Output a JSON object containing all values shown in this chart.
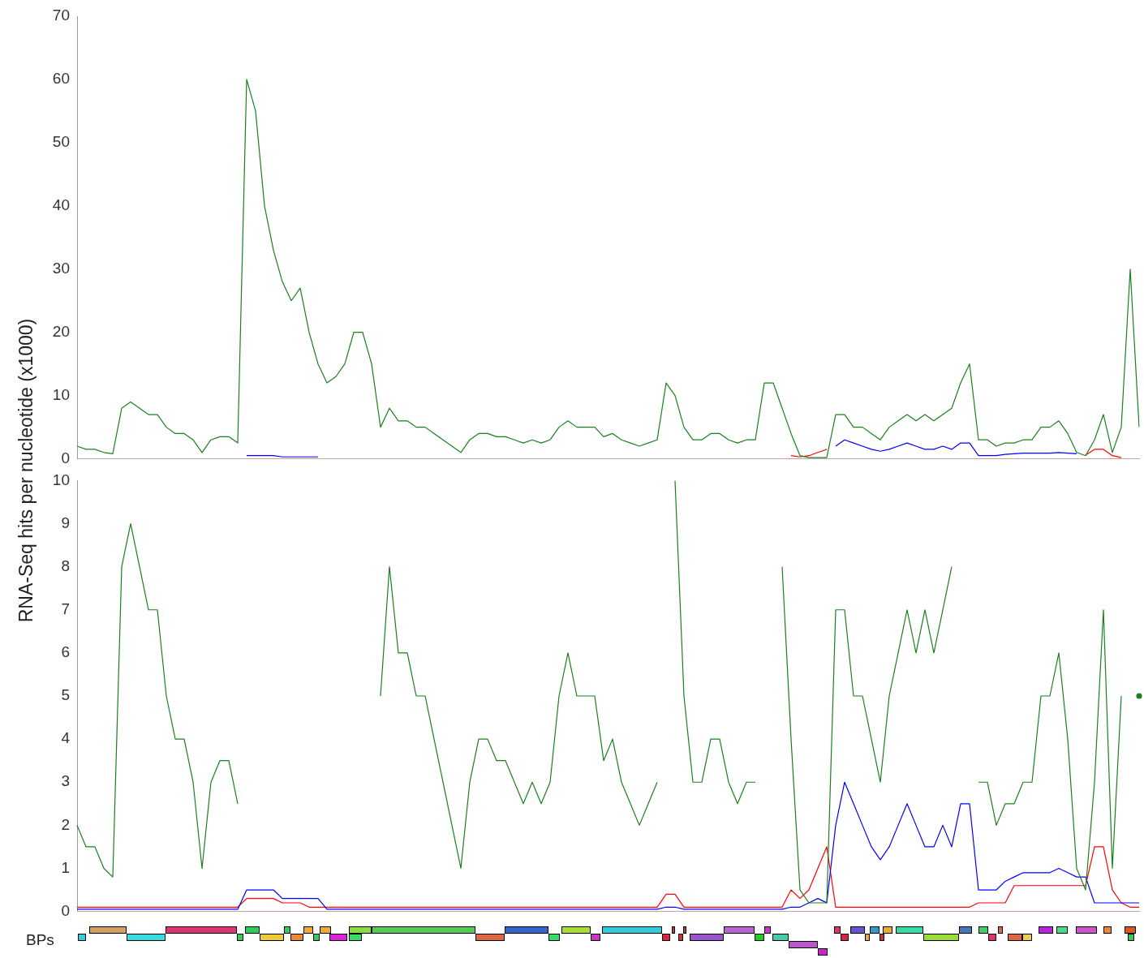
{
  "chart_data": [
    {
      "type": "line",
      "ylabel": "RNA-Seq hits per nucleotide (x1000)",
      "categories": [
        null,
        null,
        null,
        null,
        null,
        null,
        null,
        null,
        null,
        null,
        null,
        null,
        null,
        null,
        null,
        null,
        null,
        null,
        null,
        null,
        null,
        null,
        null,
        null,
        null,
        null,
        null,
        null,
        null,
        null,
        null,
        null,
        null,
        null,
        null,
        null,
        null,
        null,
        null,
        null,
        null,
        null,
        null,
        null,
        null,
        null,
        null,
        null,
        null,
        null,
        null,
        null,
        null,
        null,
        null,
        null,
        null,
        null,
        null,
        null,
        null,
        null,
        null,
        null,
        null,
        null,
        null,
        null,
        null,
        null,
        null,
        null,
        null,
        null,
        null,
        null,
        null,
        null,
        null,
        null,
        null,
        null,
        null,
        null,
        null,
        null,
        null,
        null,
        null,
        null,
        null,
        null,
        null,
        null,
        null,
        null,
        null,
        null,
        null,
        null,
        null,
        null,
        null,
        null,
        null,
        null,
        null,
        null,
        null,
        null,
        null,
        null,
        null,
        null,
        null,
        null,
        null,
        null,
        null,
        null
      ],
      "ylim": [
        0,
        70
      ],
      "yticks": [
        0,
        10,
        20,
        30,
        40,
        50,
        60,
        70
      ],
      "tick_labels": "y",
      "grid": false,
      "legend": false,
      "marker": "none",
      "line_style": "solid",
      "series": [
        {
          "color": "#1b801b",
          "values": [
            2,
            1.5,
            1.5,
            1,
            0.8,
            8,
            9,
            8,
            7,
            7,
            5,
            4,
            4,
            3,
            1,
            3,
            3.5,
            3.5,
            2.5,
            60,
            55,
            40,
            33,
            28,
            25,
            27,
            20,
            15,
            12,
            13,
            15,
            20,
            20,
            15,
            5,
            8,
            6,
            6,
            5,
            5,
            4,
            3,
            2,
            1,
            3,
            4,
            4,
            3.5,
            3.5,
            3,
            2.5,
            3,
            2.5,
            3,
            5,
            6,
            5,
            5,
            5,
            3.5,
            4,
            3,
            2.5,
            2,
            2.5,
            3,
            12,
            10,
            5,
            3,
            3,
            4,
            4,
            3,
            2.5,
            3,
            3,
            12,
            12,
            8,
            4,
            0.5,
            0.2,
            0.2,
            0.2,
            7,
            7,
            5,
            5,
            4,
            3,
            5,
            6,
            7,
            6,
            7,
            6,
            7,
            8,
            12,
            15,
            3,
            3,
            2,
            2.5,
            2.5,
            3,
            3,
            5,
            5,
            6,
            4,
            1,
            0.5,
            3,
            7,
            1,
            5,
            30,
            5
          ]
        },
        {
          "color": "#0000ff",
          "values": [
            null,
            null,
            null,
            null,
            null,
            null,
            null,
            null,
            null,
            null,
            null,
            null,
            null,
            null,
            null,
            null,
            null,
            null,
            null,
            0.5,
            0.5,
            0.5,
            0.5,
            0.3,
            0.3,
            0.3,
            0.3,
            0.3,
            null,
            null,
            null,
            null,
            null,
            null,
            null,
            null,
            null,
            null,
            null,
            null,
            null,
            null,
            null,
            null,
            null,
            null,
            null,
            null,
            null,
            null,
            null,
            null,
            null,
            null,
            null,
            null,
            null,
            null,
            null,
            null,
            null,
            null,
            null,
            null,
            null,
            null,
            null,
            null,
            null,
            null,
            null,
            null,
            null,
            null,
            null,
            null,
            null,
            null,
            null,
            null,
            null,
            null,
            null,
            null,
            null,
            2,
            3,
            2.5,
            2,
            1.5,
            1.2,
            1.5,
            2,
            2.5,
            2,
            1.5,
            1.5,
            2,
            1.5,
            2.5,
            2.5,
            0.5,
            0.5,
            0.5,
            0.7,
            0.8,
            0.9,
            0.9,
            0.9,
            0.9,
            1,
            0.9,
            0.8,
            null,
            null,
            null,
            null,
            null,
            null,
            null
          ]
        },
        {
          "color": "#ff0000",
          "values": [
            null,
            null,
            null,
            null,
            null,
            null,
            null,
            null,
            null,
            null,
            null,
            null,
            null,
            null,
            null,
            null,
            null,
            null,
            null,
            null,
            null,
            null,
            null,
            null,
            null,
            null,
            null,
            null,
            null,
            null,
            null,
            null,
            null,
            null,
            null,
            null,
            null,
            null,
            null,
            null,
            null,
            null,
            null,
            null,
            null,
            null,
            null,
            null,
            null,
            null,
            null,
            null,
            null,
            null,
            null,
            null,
            null,
            null,
            null,
            null,
            null,
            null,
            null,
            null,
            null,
            null,
            null,
            null,
            null,
            null,
            null,
            null,
            null,
            null,
            null,
            null,
            null,
            null,
            null,
            null,
            0.5,
            0.3,
            0.5,
            1,
            1.5,
            null,
            null,
            null,
            null,
            null,
            null,
            null,
            null,
            null,
            null,
            null,
            null,
            null,
            null,
            null,
            null,
            null,
            null,
            null,
            null,
            null,
            null,
            null,
            null,
            null,
            null,
            null,
            null,
            0.6,
            1.5,
            1.5,
            0.5,
            0.2,
            null,
            null
          ]
        }
      ]
    },
    {
      "type": "line",
      "annotations": [
        "BPs"
      ],
      "categories": [
        null,
        null,
        null,
        null,
        null,
        null,
        null,
        null,
        null,
        null,
        null,
        null,
        null,
        null,
        null,
        null,
        null,
        null,
        null,
        null,
        null,
        null,
        null,
        null,
        null,
        null,
        null,
        null,
        null,
        null,
        null,
        null,
        null,
        null,
        null,
        null,
        null,
        null,
        null,
        null,
        null,
        null,
        null,
        null,
        null,
        null,
        null,
        null,
        null,
        null,
        null,
        null,
        null,
        null,
        null,
        null,
        null,
        null,
        null,
        null,
        null,
        null,
        null,
        null,
        null,
        null,
        null,
        null,
        null,
        null,
        null,
        null,
        null,
        null,
        null,
        null,
        null,
        null,
        null,
        null,
        null,
        null,
        null,
        null,
        null,
        null,
        null,
        null,
        null,
        null,
        null,
        null,
        null,
        null,
        null,
        null,
        null,
        null,
        null,
        null,
        null,
        null,
        null,
        null,
        null,
        null,
        null,
        null,
        null,
        null,
        null,
        null,
        null,
        null,
        null,
        null,
        null,
        null,
        null,
        null
      ],
      "ylim": [
        0,
        10
      ],
      "yticks": [
        0,
        1,
        2,
        3,
        4,
        5,
        6,
        7,
        8,
        9,
        10
      ],
      "tick_labels": "y",
      "grid": false,
      "legend": false,
      "marker": "none",
      "line_style": "solid",
      "series": [
        {
          "color": "#1b801b",
          "values": [
            2,
            1.5,
            1.5,
            1,
            0.8,
            8,
            9,
            8,
            7,
            7,
            5,
            4,
            4,
            3,
            1,
            3,
            3.5,
            3.5,
            2.5,
            null,
            null,
            null,
            null,
            null,
            null,
            null,
            null,
            null,
            null,
            null,
            null,
            null,
            null,
            null,
            5,
            8,
            6,
            6,
            5,
            5,
            4,
            3,
            2,
            1,
            3,
            4,
            4,
            3.5,
            3.5,
            3,
            2.5,
            3,
            2.5,
            3,
            5,
            6,
            5,
            5,
            5,
            3.5,
            4,
            3,
            2.5,
            2,
            2.5,
            3,
            null,
            10,
            5,
            3,
            3,
            4,
            4,
            3,
            2.5,
            3,
            3,
            null,
            null,
            8,
            4,
            0.5,
            0.2,
            0.2,
            0.2,
            7,
            7,
            5,
            5,
            4,
            3,
            5,
            6,
            7,
            6,
            7,
            6,
            7,
            8,
            null,
            null,
            3,
            3,
            2,
            2.5,
            2.5,
            3,
            3,
            5,
            5,
            6,
            4,
            1,
            0.5,
            3,
            7,
            1,
            5,
            null,
            5
          ]
        },
        {
          "color": "#0000ff",
          "values": [
            0.05,
            0.05,
            0.05,
            0.05,
            0.05,
            0.05,
            0.05,
            0.05,
            0.05,
            0.05,
            0.05,
            0.05,
            0.05,
            0.05,
            0.05,
            0.05,
            0.05,
            0.05,
            0.05,
            0.5,
            0.5,
            0.5,
            0.5,
            0.3,
            0.3,
            0.3,
            0.3,
            0.3,
            0.05,
            0.05,
            0.05,
            0.05,
            0.05,
            0.05,
            0.05,
            0.05,
            0.05,
            0.05,
            0.05,
            0.05,
            0.05,
            0.05,
            0.05,
            0.05,
            0.05,
            0.05,
            0.05,
            0.05,
            0.05,
            0.05,
            0.05,
            0.05,
            0.05,
            0.05,
            0.05,
            0.05,
            0.05,
            0.05,
            0.05,
            0.05,
            0.05,
            0.05,
            0.05,
            0.05,
            0.05,
            0.05,
            0.1,
            0.1,
            0.05,
            0.05,
            0.05,
            0.05,
            0.05,
            0.05,
            0.05,
            0.05,
            0.05,
            0.05,
            0.05,
            0.05,
            0.1,
            0.1,
            0.2,
            0.3,
            0.2,
            2,
            3,
            2.5,
            2,
            1.5,
            1.2,
            1.5,
            2,
            2.5,
            2,
            1.5,
            1.5,
            2,
            1.5,
            2.5,
            2.5,
            0.5,
            0.5,
            0.5,
            0.7,
            0.8,
            0.9,
            0.9,
            0.9,
            0.9,
            1,
            0.9,
            0.8,
            0.8,
            0.2,
            0.2,
            0.2,
            0.2,
            0.2,
            0.2
          ]
        },
        {
          "color": "#ff0000",
          "values": [
            0.1,
            0.1,
            0.1,
            0.1,
            0.1,
            0.1,
            0.1,
            0.1,
            0.1,
            0.1,
            0.1,
            0.1,
            0.1,
            0.1,
            0.1,
            0.1,
            0.1,
            0.1,
            0.1,
            0.3,
            0.3,
            0.3,
            0.3,
            0.2,
            0.2,
            0.2,
            0.1,
            0.1,
            0.1,
            0.1,
            0.1,
            0.1,
            0.1,
            0.1,
            0.1,
            0.1,
            0.1,
            0.1,
            0.1,
            0.1,
            0.1,
            0.1,
            0.1,
            0.1,
            0.1,
            0.1,
            0.1,
            0.1,
            0.1,
            0.1,
            0.1,
            0.1,
            0.1,
            0.1,
            0.1,
            0.1,
            0.1,
            0.1,
            0.1,
            0.1,
            0.1,
            0.1,
            0.1,
            0.1,
            0.1,
            0.1,
            0.4,
            0.4,
            0.1,
            0.1,
            0.1,
            0.1,
            0.1,
            0.1,
            0.1,
            0.1,
            0.1,
            0.1,
            0.1,
            0.1,
            0.5,
            0.3,
            0.5,
            1,
            1.5,
            0.1,
            0.1,
            0.1,
            0.1,
            0.1,
            0.1,
            0.1,
            0.1,
            0.1,
            0.1,
            0.1,
            0.1,
            0.1,
            0.1,
            0.1,
            0.1,
            0.2,
            0.2,
            0.2,
            0.2,
            0.6,
            0.6,
            0.6,
            0.6,
            0.6,
            0.6,
            0.6,
            0.6,
            0.6,
            1.5,
            1.5,
            0.5,
            0.2,
            0.1,
            0.1
          ]
        }
      ]
    }
  ]
}
